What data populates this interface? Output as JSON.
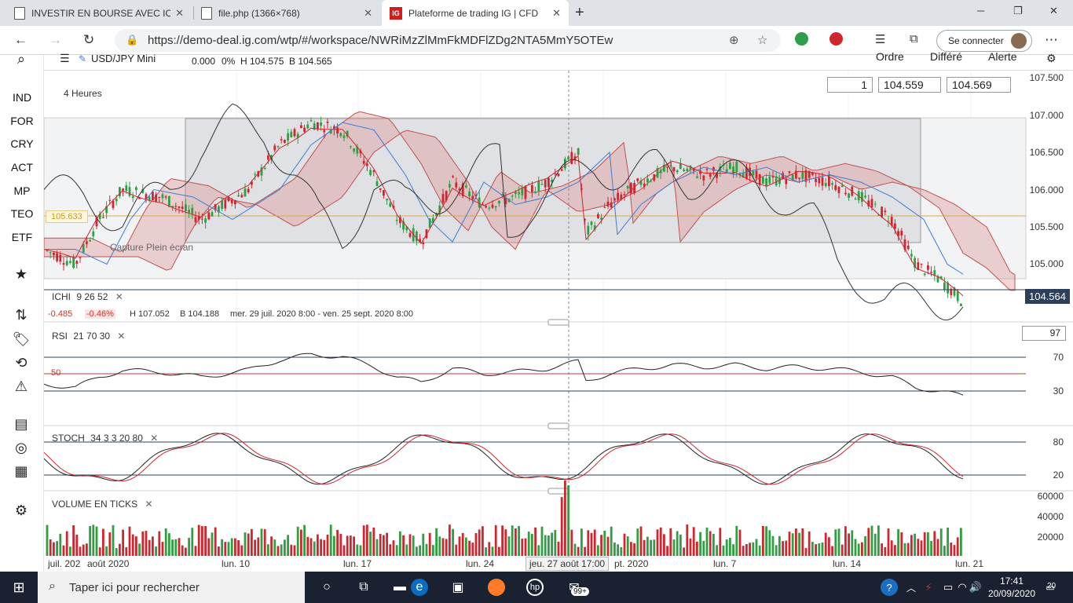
{
  "browser": {
    "tabs": [
      {
        "title": "INVESTIR EN BOURSE AVEC ICHI",
        "active": false
      },
      {
        "title": "file.php (1366×768)",
        "active": false
      },
      {
        "title": "Plateforme de trading IG | CFD",
        "active": true
      }
    ],
    "favicon_ig": "IG",
    "url": "https://demo-deal.ig.com/wtp/#/workspace/NWRiMzZlMmFkMDFlZDg2NTA5MmY5OTEw",
    "signin_label": "Se connecter"
  },
  "sidebar": {
    "items": [
      "IND",
      "FOR",
      "CRY",
      "ACT",
      "MP",
      "TEO",
      "ETF"
    ]
  },
  "header": {
    "instrument": "USD/JPY Mini",
    "change": "0.000",
    "change_pct": "0%",
    "high": "H 104.575",
    "low": "B 104.565",
    "order": "Ordre",
    "deferred": "Différé",
    "alert": "Alerte"
  },
  "chart": {
    "timeframe": "4 Heures",
    "quantity": "1",
    "bid": "104.559",
    "ask": "104.569",
    "current_price": "104.564",
    "ref_price": "105.633",
    "price_ticks": [
      "107.500",
      "107.000",
      "106.500",
      "106.000",
      "105.500",
      "105.000"
    ],
    "ichi": {
      "label": "ICHI",
      "params": "9  26  52",
      "change": "-0.485",
      "change_pct": "-0.46%",
      "high": "H 107.052",
      "low": "B 104.188",
      "range": "mer. 29 juil. 2020 8:00 - ven. 25 sept. 2020 8:00"
    },
    "rsi": {
      "label": "RSI",
      "params": "21  70  30",
      "value": "97",
      "level_label": "50",
      "ticks": [
        "70",
        "30"
      ]
    },
    "stoch": {
      "label": "STOCH",
      "params": "34  3  3  20  80",
      "ticks": [
        "80",
        "20"
      ]
    },
    "volume": {
      "label": "VOLUME EN TICKS",
      "ticks": [
        "60000",
        "40000",
        "20000"
      ]
    },
    "x_labels": [
      "juil. 202",
      "août 2020",
      "lun. 10",
      "lun. 17",
      "lun. 24",
      "jeu. 27 août 17:00",
      "pt. 2020",
      "lun. 7",
      "lun. 14",
      "lun. 21"
    ],
    "watermark": "Capture Plein écran",
    "colors": {
      "up": "#2ea043",
      "down": "#d0262f",
      "tenkan": "#d0262f",
      "kijun": "#3b7dd8",
      "chikou": "#333333"
    }
  },
  "taskbar": {
    "search_placeholder": "Taper ici pour rechercher",
    "badge": "99+",
    "time": "17:41",
    "date": "20/09/2020",
    "notif": "20"
  }
}
